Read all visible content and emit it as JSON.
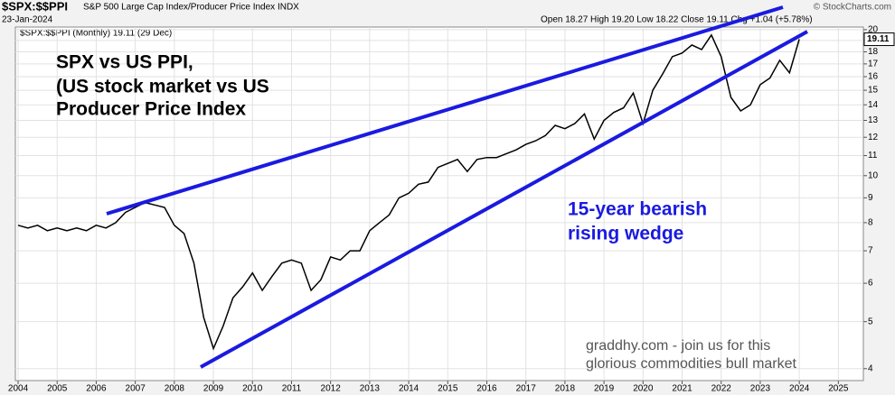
{
  "chart_data": {
    "type": "line",
    "title": "$SPX:$$PPI",
    "subtitle": "S&P 500 Large Cap Index/Producer Price Index INDX",
    "date": "23-Jan-2024",
    "quote": "Open 18.27  High 19.20  Low 18.22  Close 19.11  Chg +1.04 (+5.78%)",
    "source": "© StockCharts.com",
    "legend_text": "$SPX:$$PPI (Monthly) 19.11 (29 Dec)",
    "annotations": [
      "SPX vs US PPI,",
      "(US stock market vs US",
      "Producer Price Index",
      "15-year bearish",
      "rising wedge",
      "graddhy.com - join us for this",
      "glorious commodities bull market"
    ],
    "log_scale": true,
    "grid": true,
    "xlim": [
      2003.93,
      2025.64
    ],
    "xticks": [
      2004,
      2005,
      2006,
      2007,
      2008,
      2009,
      2010,
      2011,
      2012,
      2013,
      2014,
      2015,
      2016,
      2017,
      2018,
      2019,
      2020,
      2021,
      2022,
      2023,
      2024,
      2025
    ],
    "ylim": [
      3.78,
      20.25
    ],
    "yticks": [
      4,
      5,
      6,
      7,
      8,
      9,
      10,
      11,
      12,
      13,
      14,
      15,
      16,
      17,
      18,
      19,
      20
    ],
    "series": [
      {
        "name": "$SPX:$$PPI",
        "color": "#000000",
        "x": [
          2004,
          2004.25,
          2004.5,
          2004.75,
          2005,
          2005.25,
          2005.5,
          2005.75,
          2006,
          2006.25,
          2006.5,
          2006.75,
          2007,
          2007.25,
          2007.5,
          2007.75,
          2008,
          2008.25,
          2008.5,
          2008.75,
          2009,
          2009.25,
          2009.5,
          2009.75,
          2010,
          2010.25,
          2010.5,
          2010.75,
          2011,
          2011.25,
          2011.5,
          2011.75,
          2012,
          2012.25,
          2012.5,
          2012.75,
          2013,
          2013.25,
          2013.5,
          2013.75,
          2014,
          2014.25,
          2014.5,
          2014.75,
          2015,
          2015.25,
          2015.5,
          2015.75,
          2016,
          2016.25,
          2016.5,
          2016.75,
          2017,
          2017.25,
          2017.5,
          2017.75,
          2018,
          2018.25,
          2018.5,
          2018.75,
          2019,
          2019.25,
          2019.5,
          2019.75,
          2020,
          2020.25,
          2020.5,
          2020.75,
          2021,
          2021.25,
          2021.5,
          2021.75,
          2022,
          2022.25,
          2022.5,
          2022.75,
          2023,
          2023.25,
          2023.5,
          2023.75,
          2024
        ],
        "values": [
          7.9,
          7.8,
          7.9,
          7.7,
          7.8,
          7.7,
          7.8,
          7.7,
          7.9,
          7.8,
          8.0,
          8.4,
          8.6,
          8.8,
          8.7,
          8.6,
          7.9,
          7.6,
          6.6,
          5.1,
          4.4,
          4.9,
          5.6,
          5.9,
          6.3,
          5.8,
          6.2,
          6.6,
          6.7,
          6.6,
          5.8,
          6.1,
          6.8,
          6.7,
          7.0,
          7.0,
          7.7,
          8.0,
          8.3,
          9.0,
          9.2,
          9.6,
          9.7,
          10.4,
          10.6,
          10.8,
          10.2,
          10.8,
          10.9,
          10.9,
          11.1,
          11.3,
          11.6,
          11.8,
          12.1,
          12.7,
          12.5,
          12.8,
          13.4,
          11.9,
          13.0,
          13.5,
          13.8,
          14.8,
          12.8,
          15.0,
          16.2,
          17.6,
          17.9,
          18.6,
          18.2,
          19.5,
          17.6,
          14.5,
          13.6,
          14.0,
          15.4,
          15.9,
          17.3,
          16.3,
          19.11
        ]
      }
    ]
  }
}
